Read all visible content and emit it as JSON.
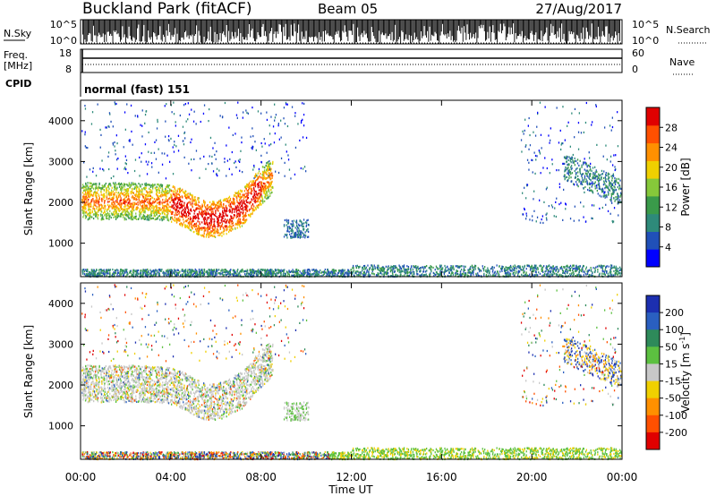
{
  "header": {
    "station": "Buckland Park (fitACF)",
    "beam": "Beam 05",
    "date": "27/Aug/2017"
  },
  "top_panels": {
    "nsky": {
      "label": "N.Sky",
      "yticks": [
        "10^5",
        "10^0"
      ],
      "right_label": "N.Search",
      "right_yticks": [
        "10^5",
        "10^0"
      ]
    },
    "freq": {
      "label_line1": "Freq.",
      "label_line2": "[MHz]",
      "yticks": [
        "18",
        "8"
      ],
      "right_label": "Nave",
      "right_yticks": [
        "60",
        "0"
      ]
    },
    "cpid": {
      "label": "CPID",
      "value": "normal (fast) 151"
    }
  },
  "colors": {
    "power_scale": [
      "#0000ff",
      "#2050b8",
      "#2e8a7a",
      "#3a9a4a",
      "#86c83a",
      "#f0d000",
      "#ff9000",
      "#ff5000",
      "#e00000"
    ],
    "velocity_scale": [
      "#1c2fb0",
      "#2a5fc0",
      "#2e8a5a",
      "#5cc040",
      "#c8c8c8",
      "#f0d000",
      "#ff9000",
      "#ff5000",
      "#e00000"
    ]
  },
  "chart_data": [
    {
      "type": "heatmap",
      "panel": "power",
      "ylabel": "Slant Range [km]",
      "xlim": [
        "00:00",
        "24:00"
      ],
      "ylim": [
        180,
        4500
      ],
      "yticks": [
        "1000",
        "2000",
        "3000",
        "4000"
      ],
      "colorbar": {
        "label": "Power [dB]",
        "ticks": [
          "4",
          "8",
          "12",
          "16",
          "20",
          "24",
          "28"
        ],
        "range": [
          0,
          32
        ]
      },
      "features": [
        {
          "x_hours": [
            0,
            8.5
          ],
          "range_km": [
            1500,
            2600
          ],
          "value": "8-28 dB"
        },
        {
          "x_hours": [
            9.0,
            10.0
          ],
          "range_km": [
            1100,
            1600
          ],
          "value": "4-8 dB"
        },
        {
          "x_hours": [
            21.5,
            24.0
          ],
          "range_km": [
            2300,
            3200
          ],
          "value": "4-16 dB"
        },
        {
          "x_hours": [
            0,
            24.0
          ],
          "range_km": [
            180,
            400
          ],
          "value": "ground scatter"
        }
      ]
    },
    {
      "type": "heatmap",
      "panel": "velocity",
      "ylabel": "Slant Range [km]",
      "xlabel": "Time UT",
      "xlim": [
        "00:00",
        "24:00"
      ],
      "xticks": [
        "00:00",
        "04:00",
        "08:00",
        "12:00",
        "16:00",
        "20:00",
        "00:00"
      ],
      "ylim": [
        180,
        4500
      ],
      "yticks": [
        "1000",
        "2000",
        "3000",
        "4000"
      ],
      "colorbar": {
        "label_main": "Velocity [m s",
        "label_sup": "-1",
        "label_end": "]",
        "ticks": [
          "200",
          "100",
          "50",
          "15",
          "-15",
          "-50",
          "-100",
          "-200"
        ]
      }
    }
  ]
}
